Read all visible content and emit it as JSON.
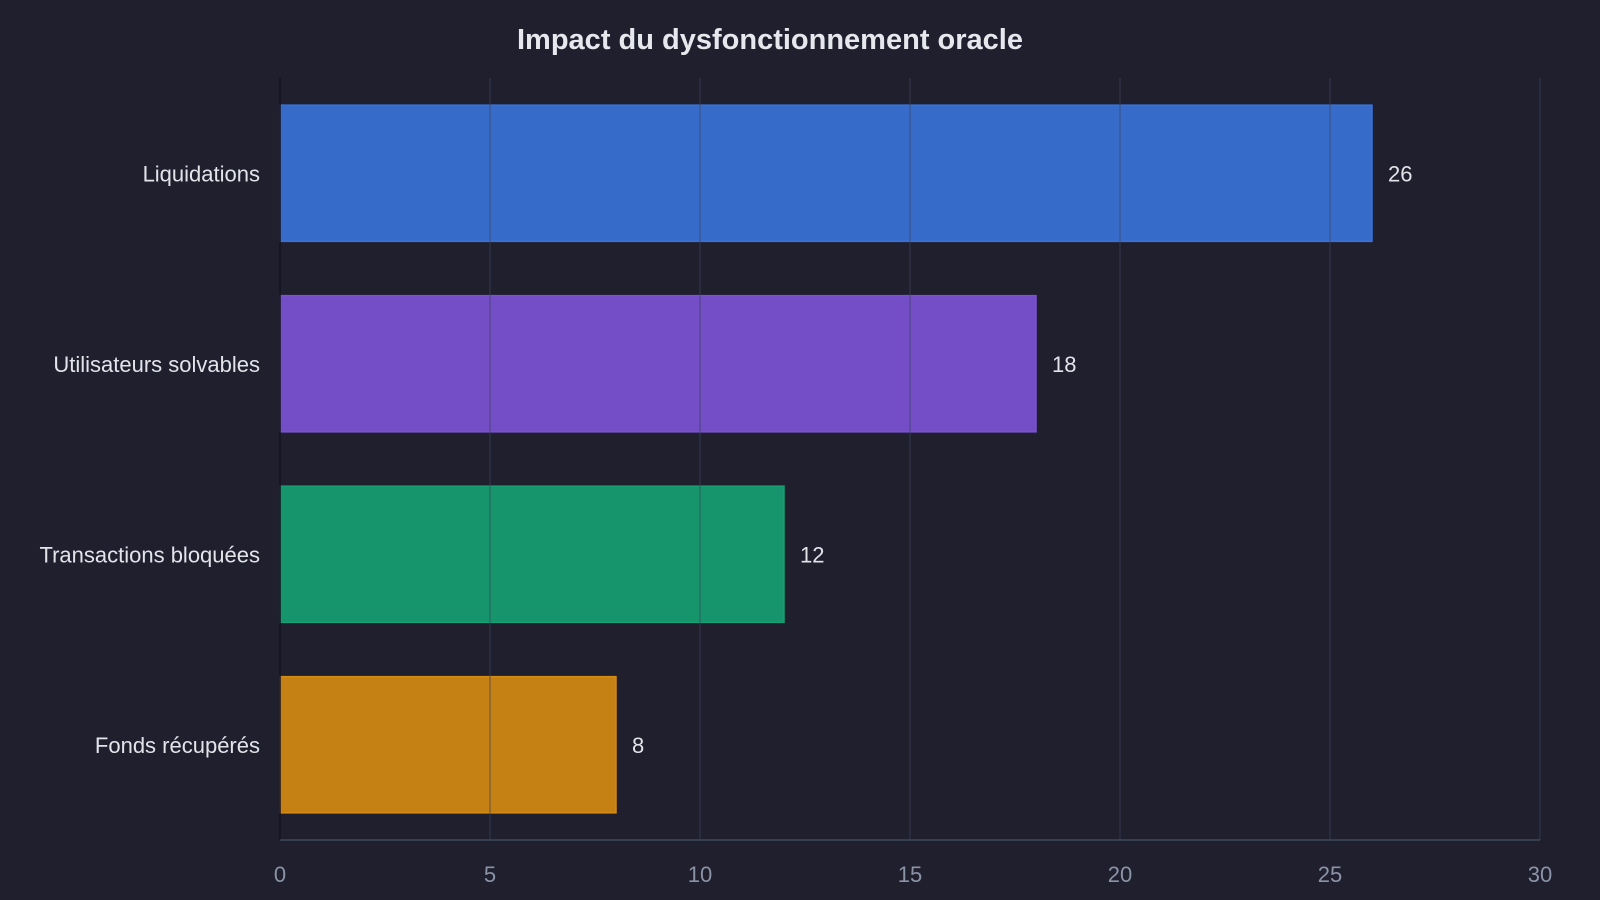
{
  "chart_data": {
    "type": "bar",
    "orientation": "horizontal",
    "title": "Impact du dysfonctionnement oracle",
    "xlabel": "",
    "ylabel": "",
    "categories": [
      "Liquidations",
      "Utilisateurs solvables",
      "Transactions bloquées",
      "Fonds récupérés"
    ],
    "values": [
      26,
      18,
      12,
      8
    ],
    "value_labels": [
      "26",
      "18",
      "12",
      "8"
    ],
    "colors": [
      "#3a72d8",
      "#7b52d4",
      "#16a073",
      "#d58a12"
    ],
    "xlim": [
      0,
      30
    ],
    "xticks": [
      0,
      5,
      10,
      15,
      20,
      25,
      30
    ],
    "xtick_labels": [
      "0",
      "5",
      "10",
      "15",
      "20",
      "25",
      "30"
    ],
    "grid": true,
    "legend": "none"
  },
  "theme": {
    "background": "#1f1f2e",
    "grid_color": "#3a4557",
    "axis_color": "#3e4a5c",
    "text_color": "#e2e4ea",
    "tick_color": "#8b93a6"
  }
}
